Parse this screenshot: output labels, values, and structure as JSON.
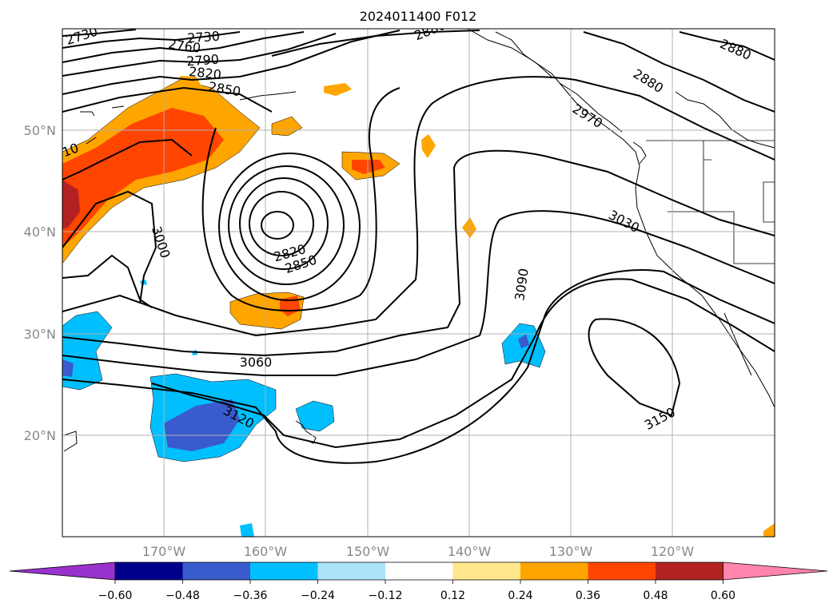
{
  "title": "2024011400 F012",
  "map": {
    "lat_labels": [
      "50°N",
      "40°N",
      "30°N",
      "20°N"
    ],
    "lon_labels": [
      "170°W",
      "160°W",
      "150°W",
      "140°W",
      "130°W",
      "120°W"
    ],
    "grid": true
  },
  "contours": {
    "labels": [
      "2730",
      "2730",
      "2760",
      "2790",
      "2820",
      "2850",
      "2880",
      "2880",
      "2880",
      "2970",
      "3000",
      "2820",
      "2850",
      "3030",
      "3090",
      "3060",
      "3120",
      "3150",
      "10"
    ]
  },
  "colorbar": {
    "colors": [
      "#9932cc",
      "#00008b",
      "#3a5bcb",
      "#00bfff",
      "#ade3f8",
      "#ffffff",
      "#ffe68c",
      "#ffa500",
      "#ff4500",
      "#b22222",
      "#ff85ac"
    ],
    "ticks": [
      "−0.60",
      "−0.48",
      "−0.36",
      "−0.24",
      "−0.12",
      "0.12",
      "0.24",
      "0.36",
      "0.48",
      "0.60"
    ]
  }
}
